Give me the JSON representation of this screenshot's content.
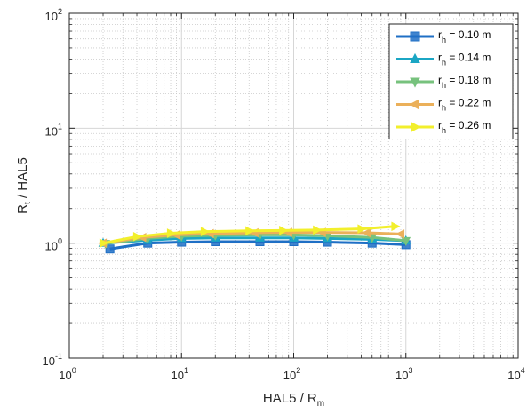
{
  "chart_data": {
    "type": "line",
    "xscale": "log",
    "yscale": "log",
    "xlim": [
      1,
      10000
    ],
    "ylim": [
      0.1,
      100
    ],
    "grid": true,
    "minor_grid": true,
    "legend_position": "top-right",
    "xlabel": {
      "main": "HAL5 / R",
      "sub": "m"
    },
    "ylabel": {
      "main": "R",
      "sub": "t",
      "rest": " / HAL5"
    },
    "x_ticks": [
      {
        "base": "10",
        "exp": "0",
        "value": 1
      },
      {
        "base": "10",
        "exp": "1",
        "value": 10
      },
      {
        "base": "10",
        "exp": "2",
        "value": 100
      },
      {
        "base": "10",
        "exp": "3",
        "value": 1000
      },
      {
        "base": "10",
        "exp": "4",
        "value": 10000
      }
    ],
    "y_ticks": [
      {
        "base": "10",
        "exp": "-1",
        "value": 0.1
      },
      {
        "base": "10",
        "exp": "0",
        "value": 1
      },
      {
        "base": "10",
        "exp": "1",
        "value": 10
      },
      {
        "base": "10",
        "exp": "2",
        "value": 100
      }
    ],
    "series": [
      {
        "name": "r_h = 0.10 m",
        "label_pre": "r",
        "label_sub": "h",
        "label_post": " = 0.10 m",
        "color": "#1f6fc5",
        "marker": "square",
        "x": [
          2.3,
          5.0,
          10.0,
          20.0,
          50.0,
          100.0,
          200.0,
          500.0,
          1000.0
        ],
        "y": [
          0.89,
          1.0,
          1.02,
          1.03,
          1.03,
          1.03,
          1.02,
          1.0,
          0.97
        ]
      },
      {
        "name": "r_h = 0.14 m",
        "label_pre": "r",
        "label_sub": "h",
        "label_post": " = 0.14 m",
        "color": "#1ba6c4",
        "marker": "triangle-up",
        "x": [
          2.0,
          5.0,
          10.0,
          20.0,
          50.0,
          100.0,
          200.0,
          500.0,
          1000.0
        ],
        "y": [
          1.0,
          1.06,
          1.1,
          1.11,
          1.11,
          1.11,
          1.1,
          1.08,
          1.05
        ]
      },
      {
        "name": "r_h = 0.18 m",
        "label_pre": "r",
        "label_sub": "h",
        "label_post": " = 0.18 m",
        "color": "#77c27d",
        "marker": "triangle-down",
        "x": [
          2.1,
          5.0,
          10.0,
          20.0,
          50.0,
          100.0,
          200.0,
          500.0,
          1000.0
        ],
        "y": [
          0.99,
          1.1,
          1.15,
          1.17,
          1.18,
          1.18,
          1.16,
          1.12,
          1.05
        ]
      },
      {
        "name": "r_h = 0.22 m",
        "label_pre": "r",
        "label_sub": "h",
        "label_post": " = 0.22 m",
        "color": "#ebb05a",
        "marker": "triangle-left",
        "x": [
          2.0,
          4.5,
          9.0,
          18.0,
          45.0,
          90.0,
          180.0,
          450.0,
          900.0
        ],
        "y": [
          1.0,
          1.12,
          1.18,
          1.21,
          1.23,
          1.24,
          1.24,
          1.23,
          1.2
        ]
      },
      {
        "name": "r_h = 0.26 m",
        "label_pre": "r",
        "label_sub": "h",
        "label_post": " = 0.26 m",
        "color": "#f2ef2c",
        "marker": "triangle-right",
        "x": [
          2.0,
          4.0,
          8.0,
          16.0,
          40.0,
          80.0,
          160.0,
          400.0,
          800.0
        ],
        "y": [
          1.0,
          1.14,
          1.22,
          1.26,
          1.28,
          1.29,
          1.3,
          1.33,
          1.4
        ]
      }
    ]
  }
}
